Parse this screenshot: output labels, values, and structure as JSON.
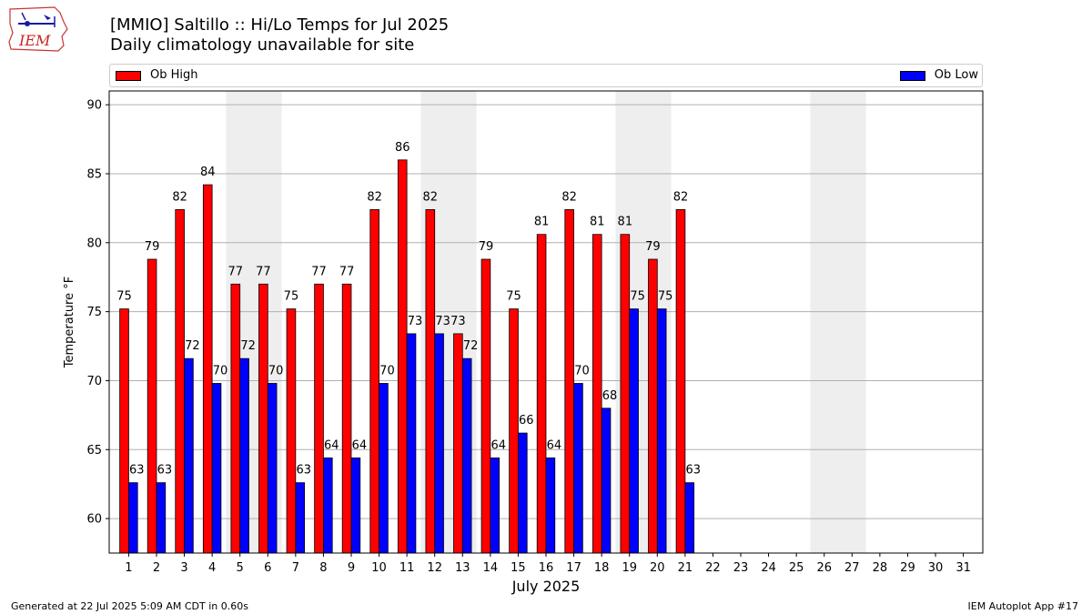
{
  "header": {
    "title": "[MMIO] Saltillo :: Hi/Lo Temps for Jul 2025",
    "subtitle": "Daily climatology unavailable for site",
    "logo_text": "IEM"
  },
  "legend": {
    "high_label": "Ob High",
    "low_label": "Ob Low"
  },
  "colors": {
    "high": "#ff0000",
    "low": "#0000ff",
    "weekend_shade": "#eeeeee",
    "grid": "#b0b0b0"
  },
  "footer": {
    "generated": "Generated at 22 Jul 2025 5:09 AM CDT in 0.60s",
    "app": "IEM Autoplot App #17"
  },
  "chart_data": {
    "type": "bar",
    "xlabel": "July 2025",
    "ylabel": "Temperature °F",
    "ylim": [
      57.5,
      91
    ],
    "yticks": [
      60,
      65,
      70,
      75,
      80,
      85,
      90
    ],
    "grid": true,
    "legend_placement": "top",
    "categories": [
      "1",
      "2",
      "3",
      "4",
      "5",
      "6",
      "7",
      "8",
      "9",
      "10",
      "11",
      "12",
      "13",
      "14",
      "15",
      "16",
      "17",
      "18",
      "19",
      "20",
      "21",
      "22",
      "23",
      "24",
      "25",
      "26",
      "27",
      "28",
      "29",
      "30",
      "31"
    ],
    "weekend_days": [
      5,
      6,
      12,
      13,
      19,
      20,
      26,
      27
    ],
    "series": [
      {
        "name": "Ob High",
        "values": [
          75,
          79,
          82,
          84,
          77,
          77,
          75,
          77,
          77,
          82,
          86,
          82,
          73,
          79,
          75,
          81,
          82,
          81,
          81,
          79,
          82,
          null,
          null,
          null,
          null,
          null,
          null,
          null,
          null,
          null,
          null
        ]
      },
      {
        "name": "Ob Low",
        "values": [
          63,
          63,
          72,
          70,
          72,
          70,
          63,
          64,
          64,
          70,
          73,
          73,
          72,
          64,
          66,
          64,
          70,
          68,
          75,
          75,
          63,
          null,
          null,
          null,
          null,
          null,
          null,
          null,
          null,
          null,
          null
        ]
      }
    ],
    "bar_values": {
      "high": [
        75.2,
        78.8,
        82.4,
        84.2,
        77.0,
        77.0,
        75.2,
        77.0,
        77.0,
        82.4,
        86.0,
        82.4,
        73.4,
        78.8,
        75.2,
        80.6,
        82.4,
        80.6,
        80.6,
        78.8,
        82.4,
        null,
        null,
        null,
        null,
        null,
        null,
        null,
        null,
        null,
        null
      ],
      "low": [
        62.6,
        62.6,
        71.6,
        69.8,
        71.6,
        69.8,
        62.6,
        64.4,
        64.4,
        69.8,
        73.4,
        73.4,
        71.6,
        64.4,
        66.2,
        64.4,
        69.8,
        68.0,
        75.2,
        75.2,
        62.6,
        null,
        null,
        null,
        null,
        null,
        null,
        null,
        null,
        null,
        null
      ]
    }
  }
}
